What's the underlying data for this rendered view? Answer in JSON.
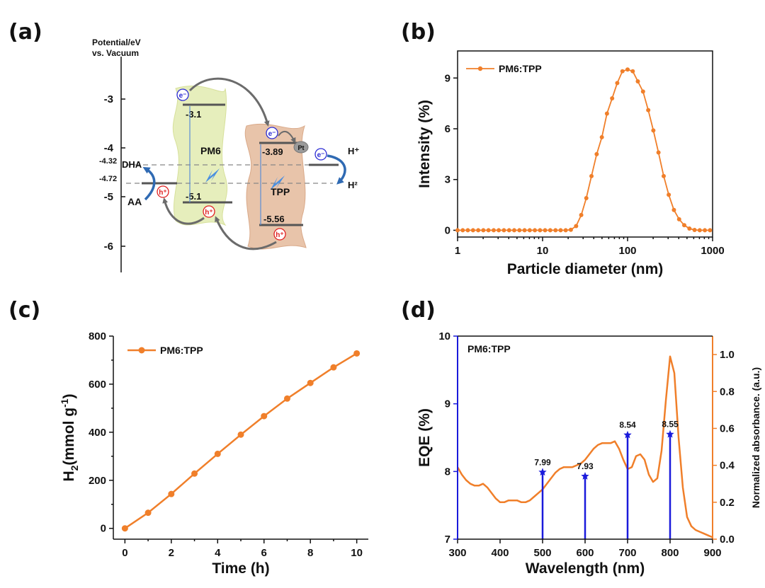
{
  "panels": {
    "a": {
      "tag": "(a)"
    },
    "b": {
      "tag": "(b)"
    },
    "c": {
      "tag": "(c)"
    },
    "d": {
      "tag": "(d)"
    }
  },
  "diagram_a": {
    "ylabel_line1": "Potential/eV",
    "ylabel_line2": "vs. Vacuum",
    "yticks": [
      "-3",
      "-4",
      "-5",
      "-6"
    ],
    "levels": {
      "pm6_lumo": "-3.1",
      "pm6_homo": "-5.1",
      "tpp_lumo": "-3.89",
      "tpp_homo": "-5.56",
      "dha": "-4.32",
      "aa": "-4.72"
    },
    "labels": {
      "pm6": "PM6",
      "tpp": "TPP",
      "dha": "DHA",
      "aa": "AA",
      "h_plus": "H⁺",
      "h2": "H²",
      "pt": "Pt",
      "electron": "e⁻",
      "hole": "h⁺"
    },
    "colors": {
      "pm6": "#e6eebc",
      "tpp": "#e8c4aa",
      "electron": "#2b2bd4",
      "hole": "#e02020",
      "arrow": "#2f6ab3"
    }
  },
  "chart_data": [
    {
      "panel": "b",
      "type": "line",
      "xscale": "log",
      "xlabel": "Particle diameter (nm)",
      "ylabel": "Intensity (%)",
      "xlim": [
        1,
        1000
      ],
      "ylim": [
        -0.4,
        10.6
      ],
      "xticks": [
        1,
        10,
        100,
        1000
      ],
      "yticks": [
        0,
        3,
        6,
        9
      ],
      "color": "#f07f2a",
      "series": [
        {
          "name": "PM6:TPP",
          "x": [
            1.0,
            1.15,
            1.32,
            1.52,
            1.75,
            2.01,
            2.31,
            2.66,
            3.05,
            3.51,
            4.04,
            4.64,
            5.34,
            6.14,
            7.06,
            8.11,
            9.33,
            10.7,
            12.3,
            14.2,
            16.3,
            18.7,
            21.5,
            24.8,
            28.5,
            32.7,
            37.6,
            43.3,
            49.8,
            57.2,
            65.8,
            75.6,
            87.0,
            100,
            115,
            132,
            152,
            175,
            201,
            231,
            266,
            305,
            351,
            404,
            464,
            534,
            614,
            706,
            811,
            933
          ],
          "values": [
            0,
            0,
            0,
            0,
            0,
            0,
            0,
            0,
            0,
            0,
            0,
            0,
            0,
            0,
            0,
            0,
            0,
            0,
            0,
            0,
            0,
            0,
            0.03,
            0.25,
            0.9,
            1.9,
            3.2,
            4.5,
            5.5,
            6.9,
            7.8,
            8.7,
            9.4,
            9.5,
            9.4,
            8.8,
            8.2,
            7.1,
            5.9,
            4.6,
            3.2,
            2.1,
            1.2,
            0.65,
            0.3,
            0.1,
            0.02,
            0,
            0,
            0
          ]
        }
      ]
    },
    {
      "panel": "c",
      "type": "line",
      "xlabel": "Time (h)",
      "ylabel_main": "H",
      "ylabel_sub": "2",
      "ylabel_rest": "(mmol g",
      "ylabel_sup": "-1",
      "ylabel_close": ")",
      "xlim": [
        -0.5,
        10.5
      ],
      "ylim": [
        -45,
        800
      ],
      "xticks": [
        0,
        2,
        4,
        6,
        8,
        10
      ],
      "yticks": [
        0,
        200,
        400,
        600,
        800
      ],
      "color": "#f07f2a",
      "series": [
        {
          "name": "PM6:TPP",
          "x": [
            0,
            1,
            2,
            3,
            4,
            5,
            6,
            7,
            8,
            9,
            10
          ],
          "values": [
            0,
            65,
            143,
            228,
            310,
            390,
            467,
            540,
            605,
            670,
            728
          ]
        }
      ]
    },
    {
      "panel": "d",
      "type": "bar+line",
      "xlabel": "Wavelength (nm)",
      "ylabel": "EQE (%)",
      "ylabel_right": "Normalized absorbance. (a.u.)",
      "xlim": [
        300,
        900
      ],
      "ylim": [
        7,
        10
      ],
      "ylim_right": [
        0,
        1.1
      ],
      "xticks": [
        300,
        400,
        500,
        600,
        700,
        800,
        900
      ],
      "yticks": [
        7,
        8,
        9,
        10
      ],
      "yticks_right": [
        "0.0",
        "0.2",
        "0.4",
        "0.6",
        "0.8",
        "1.0"
      ],
      "legend_text": "PM6:TPP",
      "eqe_color": "#1a1adb",
      "abs_color": "#f07f2a",
      "eqe": {
        "x": [
          500,
          600,
          700,
          800
        ],
        "values": [
          7.99,
          7.93,
          8.54,
          8.55
        ],
        "labels": [
          "7.99",
          "7.93",
          "8.54",
          "8.55"
        ]
      },
      "absorbance": {
        "x": [
          300,
          310,
          320,
          330,
          340,
          350,
          360,
          370,
          380,
          390,
          400,
          410,
          420,
          430,
          440,
          450,
          460,
          470,
          480,
          490,
          500,
          510,
          520,
          530,
          540,
          550,
          560,
          570,
          580,
          590,
          600,
          610,
          620,
          630,
          640,
          650,
          660,
          670,
          680,
          690,
          700,
          710,
          720,
          730,
          740,
          750,
          760,
          770,
          780,
          790,
          800,
          810,
          820,
          830,
          840,
          850,
          860,
          870,
          880,
          890,
          900
        ],
        "values": [
          0.39,
          0.35,
          0.32,
          0.3,
          0.29,
          0.29,
          0.3,
          0.28,
          0.25,
          0.22,
          0.2,
          0.2,
          0.21,
          0.21,
          0.21,
          0.2,
          0.2,
          0.21,
          0.23,
          0.25,
          0.27,
          0.3,
          0.33,
          0.36,
          0.38,
          0.39,
          0.39,
          0.39,
          0.4,
          0.41,
          0.43,
          0.46,
          0.49,
          0.51,
          0.52,
          0.52,
          0.52,
          0.53,
          0.49,
          0.43,
          0.38,
          0.39,
          0.45,
          0.46,
          0.43,
          0.35,
          0.31,
          0.33,
          0.48,
          0.75,
          0.99,
          0.9,
          0.55,
          0.28,
          0.12,
          0.07,
          0.05,
          0.04,
          0.03,
          0.02,
          0.01
        ]
      }
    }
  ]
}
